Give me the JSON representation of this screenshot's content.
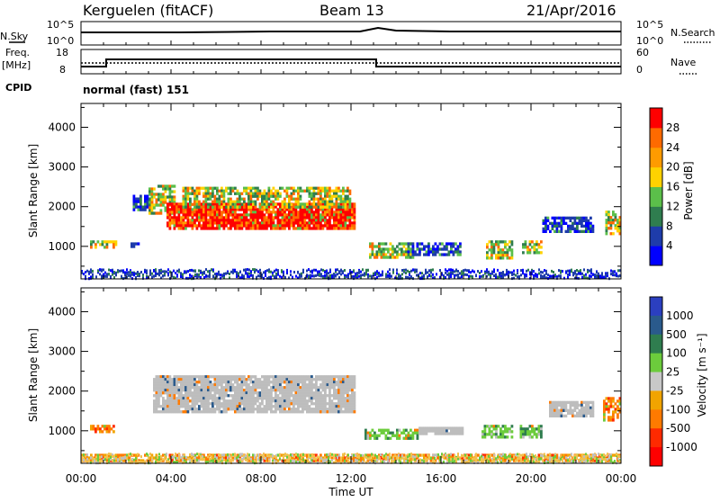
{
  "header": {
    "title": "Kerguelen (fitACF)",
    "beam": "Beam 13",
    "date": "21/Apr/2016"
  },
  "upper_panels": {
    "nsky": {
      "label": "N.Sky",
      "tick_top": "10^5",
      "tick_bottom": "10^0"
    },
    "nsearch": {
      "label": "N.Search",
      "tick_top": "10^5",
      "tick_bottom": "10^0"
    },
    "freq": {
      "label_line1": "Freq.",
      "label_line2": "[MHz]",
      "tick_top": "18",
      "tick_bottom": "8"
    },
    "nave": {
      "label": "Nave",
      "tick_top": "60",
      "tick_bottom": "0"
    },
    "cpid": {
      "label": "CPID",
      "value": "normal (fast) 151"
    }
  },
  "colors": {
    "power": [
      "#0000ff",
      "#1e3caa",
      "#2f7d4f",
      "#5bbf4a",
      "#ffd200",
      "#ff9b00",
      "#ff6a00",
      "#ff0000"
    ],
    "velocity": [
      "#2b3fc0",
      "#2a5a8c",
      "#2f7d4f",
      "#6ccc3c",
      "#c8c8c8",
      "#f1a400",
      "#ff7a00",
      "#ff2a00",
      "#ff0000"
    ],
    "ground_scatter": "#bdbdbd"
  },
  "chart_data": [
    {
      "type": "heatmap",
      "name": "power",
      "xlabel": "",
      "ylabel": "Slant Range [km]",
      "x_ticks": [
        "00:00",
        "04:00",
        "08:00",
        "12:00",
        "16:00",
        "20:00",
        "00:00"
      ],
      "y_ticks": [
        1000,
        2000,
        3000,
        4000
      ],
      "xlim": [
        0,
        24
      ],
      "ylim": [
        180,
        4600
      ],
      "colorbar": {
        "label": "Power [dB]",
        "ticks": [
          "4",
          "8",
          "12",
          "16",
          "20",
          "24",
          "28"
        ]
      },
      "regions": [
        {
          "t0": 0.4,
          "t1": 1.6,
          "r0": 980,
          "r1": 1150,
          "level": "mid"
        },
        {
          "t0": 2.2,
          "t1": 2.6,
          "r0": 1000,
          "r1": 1100,
          "level": "low"
        },
        {
          "t0": 2.3,
          "t1": 3.2,
          "r0": 1950,
          "r1": 2300,
          "level": "low"
        },
        {
          "t0": 3.0,
          "t1": 4.2,
          "r0": 1850,
          "r1": 2550,
          "level": "mid"
        },
        {
          "t0": 3.8,
          "t1": 12.2,
          "r0": 1450,
          "r1": 2100,
          "level": "high"
        },
        {
          "t0": 4.5,
          "t1": 12.0,
          "r0": 2000,
          "r1": 2500,
          "level": "mid"
        },
        {
          "t0": 12.8,
          "t1": 14.8,
          "r0": 700,
          "r1": 1100,
          "level": "mid"
        },
        {
          "t0": 14.5,
          "t1": 16.8,
          "r0": 800,
          "r1": 1100,
          "level": "low"
        },
        {
          "t0": 18.0,
          "t1": 19.2,
          "r0": 700,
          "r1": 1150,
          "level": "mid"
        },
        {
          "t0": 19.6,
          "t1": 20.5,
          "r0": 850,
          "r1": 1150,
          "level": "mid"
        },
        {
          "t0": 20.5,
          "t1": 22.8,
          "r0": 1400,
          "r1": 1750,
          "level": "low"
        },
        {
          "t0": 23.3,
          "t1": 24.0,
          "r0": 1300,
          "r1": 1900,
          "level": "mid"
        }
      ]
    },
    {
      "type": "heatmap",
      "name": "velocity",
      "xlabel": "Time UT",
      "ylabel": "Slant Range [km]",
      "x_ticks": [
        "00:00",
        "04:00",
        "08:00",
        "12:00",
        "16:00",
        "20:00",
        "00:00"
      ],
      "y_ticks": [
        1000,
        2000,
        3000,
        4000
      ],
      "xlim": [
        0,
        24
      ],
      "ylim": [
        180,
        4600
      ],
      "colorbar": {
        "label": "Velocity [m s⁻¹]",
        "ticks": [
          "1000",
          "500",
          "100",
          "25",
          "-25",
          "-100",
          "-500",
          "-1000"
        ]
      },
      "regions": [
        {
          "t0": 0.4,
          "t1": 1.5,
          "r0": 950,
          "r1": 1150,
          "level": "neg"
        },
        {
          "t0": 3.2,
          "t1": 12.2,
          "r0": 1450,
          "r1": 2400,
          "level": "gs"
        },
        {
          "t0": 12.6,
          "t1": 15.0,
          "r0": 800,
          "r1": 1050,
          "level": "pos"
        },
        {
          "t0": 15.0,
          "t1": 17.0,
          "r0": 900,
          "r1": 1100,
          "level": "gs"
        },
        {
          "t0": 17.8,
          "t1": 19.2,
          "r0": 850,
          "r1": 1150,
          "level": "pos"
        },
        {
          "t0": 19.5,
          "t1": 20.5,
          "r0": 850,
          "r1": 1150,
          "level": "pos"
        },
        {
          "t0": 20.8,
          "t1": 22.8,
          "r0": 1400,
          "r1": 1750,
          "level": "gs"
        },
        {
          "t0": 23.2,
          "t1": 24.0,
          "r0": 1300,
          "r1": 1850,
          "level": "neg"
        },
        {
          "t0": 0.0,
          "t1": 24.0,
          "r0": 220,
          "r1": 420,
          "level": "neg"
        }
      ]
    }
  ]
}
